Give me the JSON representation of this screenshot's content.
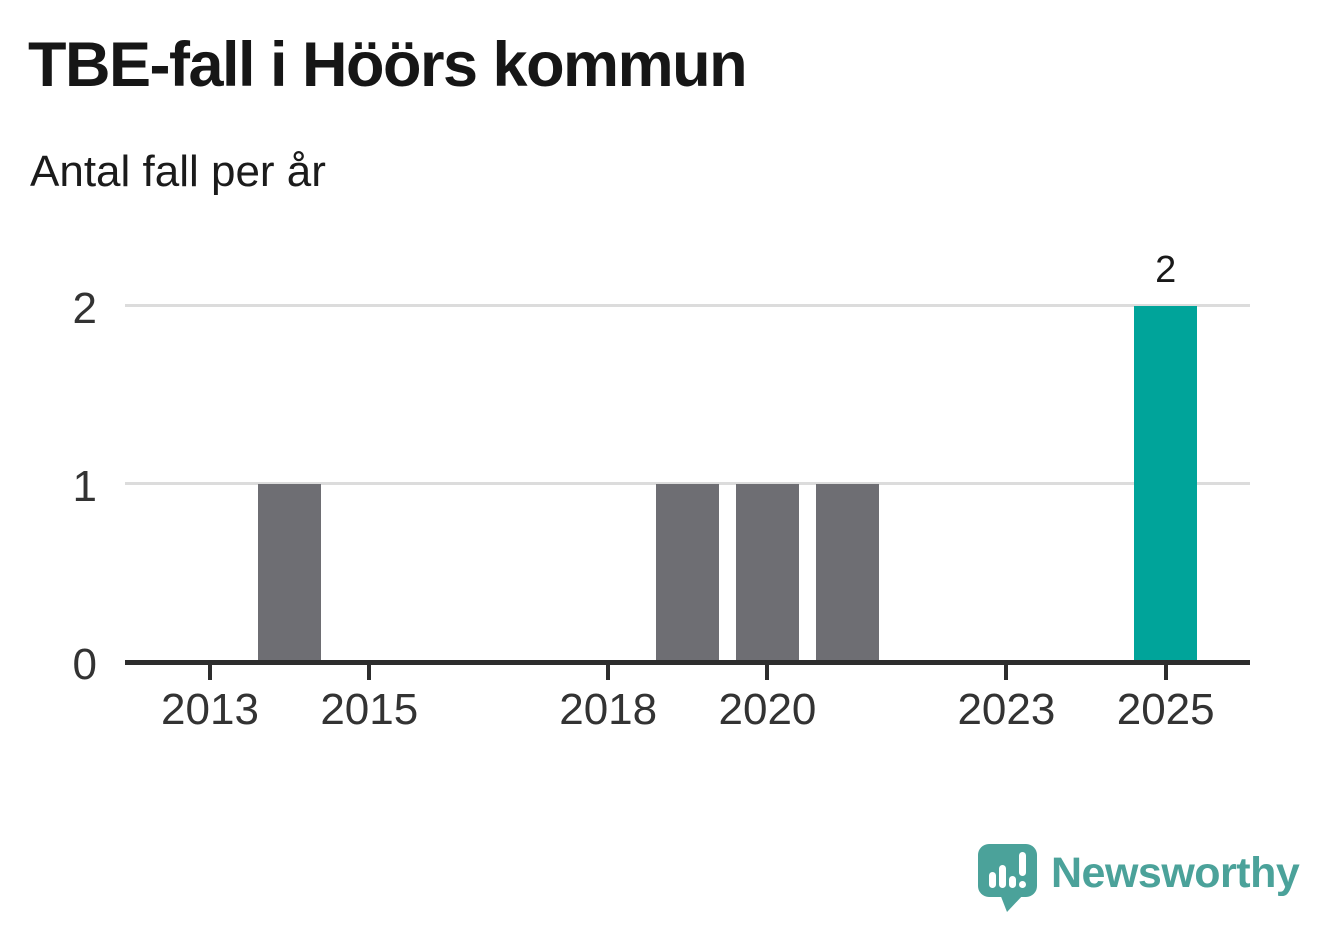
{
  "chart_data": {
    "type": "bar",
    "title": "TBE-fall i Höörs kommun",
    "subtitle": "Antal fall per år",
    "categories": [
      2012,
      2013,
      2014,
      2015,
      2016,
      2017,
      2018,
      2019,
      2020,
      2021,
      2022,
      2023,
      2024,
      2025
    ],
    "values": [
      0,
      0,
      1,
      0,
      0,
      0,
      0,
      1,
      1,
      1,
      0,
      0,
      0,
      2
    ],
    "xlabel": "",
    "ylabel": "",
    "ylim": [
      0,
      2
    ],
    "y_ticks": [
      0,
      1,
      2
    ],
    "x_tick_years": [
      2013,
      2015,
      2018,
      2020,
      2023,
      2025
    ],
    "value_labels": [
      {
        "year": 2025,
        "label": "2"
      }
    ],
    "highlight_year": 2025,
    "bar_color_default": "#6e6e73",
    "bar_color_highlight": "#00a49a",
    "grid": "horizontal",
    "legend": "none"
  },
  "footer": {
    "brand": "Newsworthy",
    "brand_color": "#4ba29a",
    "logo_icon": "newsworthy-speech-bubble-bar-chart-icon"
  }
}
